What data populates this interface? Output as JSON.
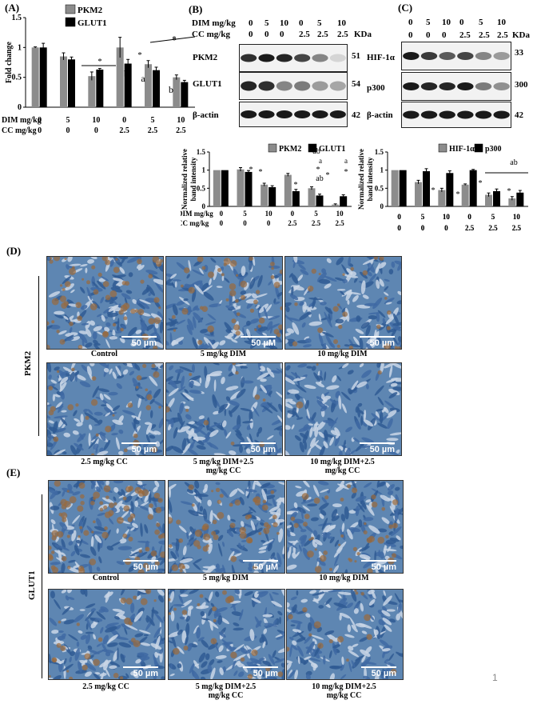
{
  "panels": {
    "A": "(A)",
    "B": "(B)",
    "C": "(C)",
    "D": "(D)",
    "E": "(E)"
  },
  "dose_rows": {
    "dim_label": "DIM  mg/kg",
    "cc_label": "CC   mg/kg",
    "dim_values": [
      "0",
      "5",
      "10",
      "0",
      "5",
      "10"
    ],
    "cc_values": [
      "0",
      "0",
      "0",
      "2.5",
      "2.5",
      "2.5"
    ]
  },
  "chart_data": [
    {
      "type": "bar",
      "categories": [
        "0|0",
        "5|0",
        "10|0",
        "0|2.5",
        "5|2.5",
        "10|2.5"
      ],
      "ylabel": "Fold change",
      "ylim": [
        0,
        1.5
      ],
      "yticks": [
        0,
        0.5,
        1,
        1.5
      ],
      "series": [
        {
          "name": "PKM2",
          "values": [
            1.0,
            0.85,
            0.52,
            1.0,
            0.72,
            0.5
          ],
          "errors": [
            0.01,
            0.06,
            0.07,
            0.17,
            0.06,
            0.04
          ]
        },
        {
          "name": "GLUT1",
          "values": [
            1.0,
            0.8,
            0.63,
            0.73,
            0.62,
            0.42
          ],
          "errors": [
            0.07,
            0.04,
            0.02,
            0.07,
            0.05,
            0.03
          ]
        }
      ],
      "annotations": [
        "*",
        "*",
        "*",
        "b",
        "a",
        "b",
        "*"
      ]
    },
    {
      "type": "bar",
      "categories": [
        "0|0",
        "5|0",
        "10|0",
        "0|2.5",
        "5|2.5",
        "10|2.5"
      ],
      "ylabel": "Normalized relative band intensity",
      "ylim": [
        0,
        1.5
      ],
      "yticks": [
        0,
        0.5,
        1,
        1.5
      ],
      "series": [
        {
          "name": "PKM2",
          "values": [
            1.0,
            1.02,
            0.6,
            0.87,
            0.5,
            0.05
          ],
          "errors": [
            0.0,
            0.05,
            0.04,
            0.04,
            0.04,
            0.02
          ]
        },
        {
          "name": "GLUT1",
          "values": [
            1.0,
            0.95,
            0.53,
            0.42,
            0.3,
            0.28
          ],
          "errors": [
            0.0,
            0.04,
            0.04,
            0.05,
            0.04,
            0.04
          ]
        }
      ],
      "annotations": [
        "*",
        "*",
        "ab",
        "*",
        "a",
        "*",
        "*",
        "ab",
        "a",
        "*"
      ]
    },
    {
      "type": "bar",
      "categories": [
        "0|0",
        "5|0",
        "10|0",
        "0|2.5",
        "5|2.5",
        "10|2.5"
      ],
      "ylabel": "Normalized relative band intensity",
      "ylim": [
        0,
        1.5
      ],
      "yticks": [
        0,
        0.5,
        1,
        1.5
      ],
      "series": [
        {
          "name": "HIF-1α",
          "values": [
            1.0,
            0.67,
            0.45,
            0.6,
            0.32,
            0.22
          ],
          "errors": [
            0.0,
            0.05,
            0.05,
            0.02,
            0.05,
            0.05
          ]
        },
        {
          "name": "p300",
          "values": [
            1.0,
            0.97,
            0.92,
            1.0,
            0.42,
            0.38
          ],
          "errors": [
            0.0,
            0.07,
            0.06,
            0.02,
            0.06,
            0.06
          ]
        }
      ],
      "annotations": [
        "*",
        "*",
        "*",
        "*",
        "*",
        "ab"
      ]
    }
  ],
  "blots_B": {
    "header_dim": "DIM  mg/kg",
    "header_cc": "CC   mg/kg",
    "kda": "KDa",
    "rows": [
      {
        "name": "PKM2",
        "kda": "51"
      },
      {
        "name": "GLUT1",
        "kda": "54"
      },
      {
        "name": "β-actin",
        "kda": "42"
      }
    ]
  },
  "blots_C": {
    "kda": "KDa",
    "rows": [
      {
        "name": "HIF-1α",
        "kda": "33"
      },
      {
        "name": "p300",
        "kda": "300"
      },
      {
        "name": "β-actin",
        "kda": "42"
      }
    ]
  },
  "section_D": {
    "side_label": "PKM2",
    "captions": [
      "Control",
      "5 mg/kg DIM",
      "10 mg/kg DIM",
      "2.5 mg/kg CC",
      "5 mg/kg DIM+2.5\nmg/kg CC",
      "10 mg/kg DIM+2.5\nmg/kg CC"
    ],
    "scales": [
      "50 µm",
      "50 µM",
      "50 µm",
      "50 µm",
      "50 µm",
      "50 µm"
    ]
  },
  "section_E": {
    "side_label": "GLUT1",
    "captions": [
      "Control",
      "5 mg/kg DIM",
      "10 mg/kg DIM",
      "2.5 mg/kg CC",
      "5 mg/kg DIM+2.5\nmg/kg CC",
      "10 mg/kg DIM+2.5\nmg/kg CC"
    ],
    "scales": [
      "50 µm",
      "50 µM",
      "50 µm",
      "50 µm",
      "50 µm",
      "50 µm"
    ]
  },
  "page_number": "1",
  "colors": {
    "series_gray": "#8c8c8c",
    "series_black": "#000000",
    "tissue_blue": "#5e86b2",
    "stain_brown": "#9a6a3c"
  }
}
